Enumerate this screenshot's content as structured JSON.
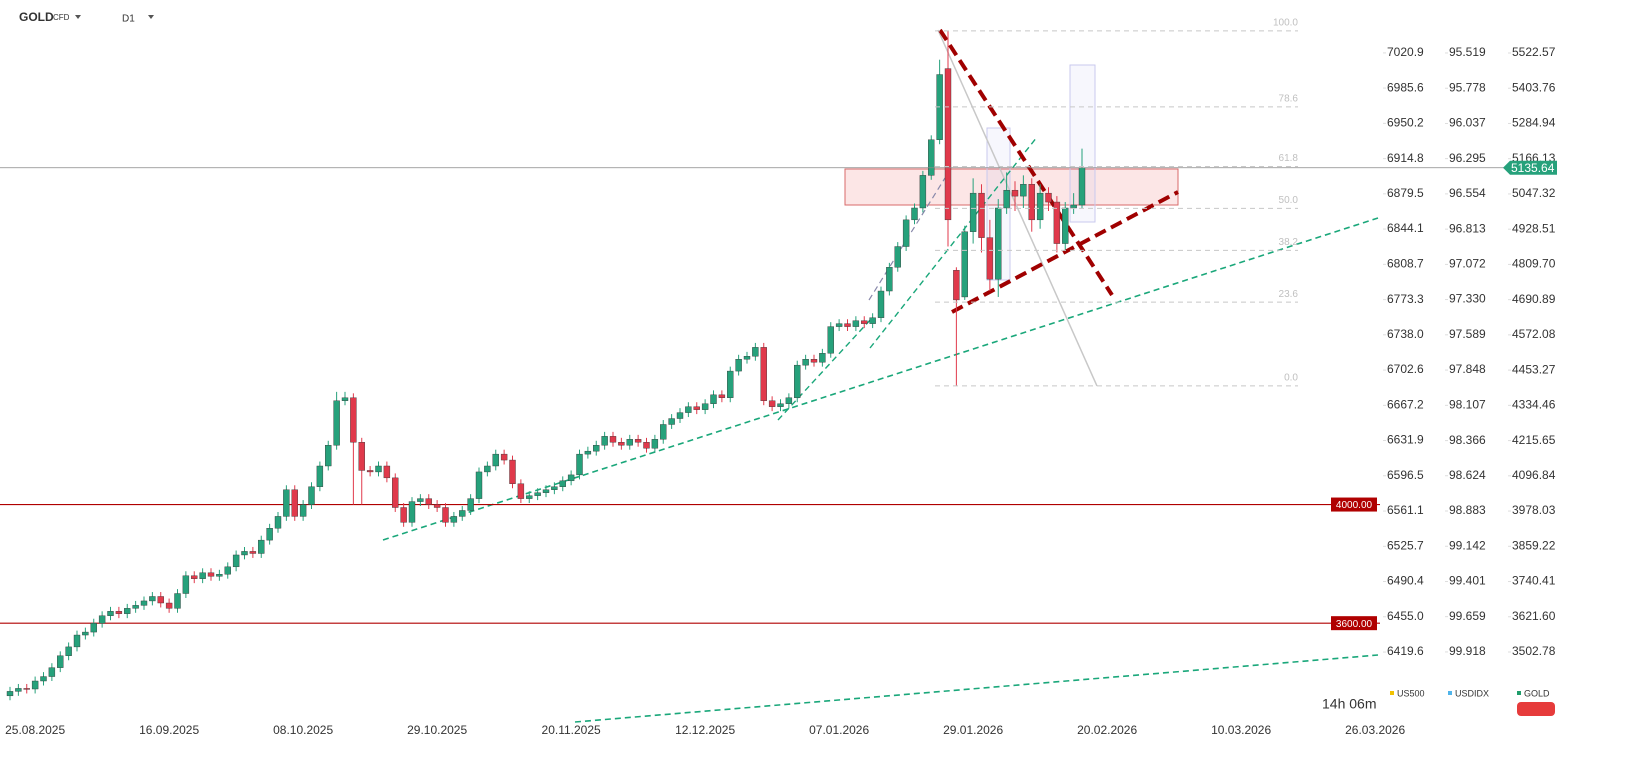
{
  "chart_data": {
    "type": "candlestick",
    "symbol": "GOLD",
    "symbol_type": "CFD",
    "timeframe": "D1",
    "countdown": "14h 06m",
    "last_price": 5135.64,
    "categories": [
      null,
      null,
      null,
      "25.08.2025",
      null,
      null,
      null,
      null,
      null,
      null,
      null,
      null,
      null,
      null,
      null,
      null,
      null,
      null,
      null,
      "16.09.2025",
      null,
      null,
      null,
      null,
      null,
      null,
      null,
      null,
      null,
      null,
      null,
      null,
      null,
      null,
      null,
      "08.10.2025",
      null,
      null,
      null,
      null,
      null,
      null,
      null,
      null,
      null,
      null,
      null,
      null,
      null,
      null,
      null,
      "29.10.2025",
      null,
      null,
      null,
      null,
      null,
      null,
      null,
      null,
      null,
      null,
      null,
      null,
      null,
      null,
      null,
      "20.11.2025",
      null,
      null,
      null,
      null,
      null,
      null,
      null,
      null,
      null,
      null,
      null,
      null,
      null,
      null,
      null,
      "12.12.2025",
      null,
      null,
      null,
      null,
      null,
      null,
      null,
      null,
      null,
      null,
      null,
      null,
      null,
      null,
      null,
      "07.01.2026",
      null,
      null,
      null,
      null,
      null,
      null,
      null,
      null,
      null,
      null,
      null,
      null,
      null,
      null,
      null,
      "29.01.2026",
      null,
      null,
      null,
      null,
      null,
      null,
      null,
      null,
      null,
      null,
      null,
      null,
      null,
      null,
      null,
      "20.02.2026",
      null,
      null,
      null,
      null,
      null,
      null,
      null,
      null,
      null,
      null,
      null,
      null,
      null,
      null,
      null,
      "10.03.2026",
      null,
      null,
      null,
      null,
      null,
      null,
      null,
      null,
      null,
      null,
      null,
      null,
      null,
      null,
      null,
      "26.03.2026"
    ],
    "series": [
      {
        "name": "US500",
        "color": "#f2c200"
      },
      {
        "name": "USDIDX",
        "color": "#4fb4ea"
      },
      {
        "name": "GOLD",
        "color": "#1f9d6b",
        "up_color": "#26a17b",
        "down_color": "#e0394b",
        "open": [
          3355,
          3370,
          3380,
          3378,
          3405,
          3420,
          3450,
          3490,
          3520,
          3560,
          3570,
          3600,
          3625,
          3640,
          3632,
          3650,
          3660,
          3675,
          3690,
          3668,
          3650,
          3700,
          3760,
          3750,
          3770,
          3758,
          3765,
          3790,
          3830,
          3842,
          3835,
          3880,
          3920,
          3960,
          4050,
          3960,
          4000,
          4060,
          4130,
          4200,
          4350,
          4360,
          4210,
          4115,
          4110,
          4130,
          4090,
          3990,
          3940,
          4010,
          4020,
          4000,
          3990,
          3940,
          3960,
          3980,
          4020,
          4110,
          4130,
          4170,
          4150,
          4070,
          4020,
          4030,
          4040,
          4050,
          4060,
          4080,
          4100,
          4170,
          4180,
          4200,
          4230,
          4210,
          4200,
          4220,
          4210,
          4190,
          4220,
          4270,
          4290,
          4310,
          4330,
          4320,
          4340,
          4370,
          4360,
          4450,
          4490,
          4500,
          4530,
          4350,
          4330,
          4340,
          4360,
          4470,
          4490,
          4480,
          4510,
          4600,
          4610,
          4600,
          4620,
          4610,
          4630,
          4720,
          4800,
          4870,
          4960,
          5000,
          5110,
          5230,
          5470,
          4790,
          4700,
          4920,
          5050,
          4900,
          4760,
          5000,
          5060,
          5040,
          5080,
          4960,
          5050,
          5020,
          4880,
          5000,
          5010,
          null,
          null,
          null,
          null,
          null,
          null,
          null,
          null,
          null,
          null,
          null,
          null,
          null,
          null,
          null,
          null,
          null,
          null,
          null,
          null,
          null,
          null,
          null,
          null,
          null,
          null,
          null,
          null,
          null,
          null,
          null,
          null,
          null,
          null,
          null
        ],
        "high": [
          3385,
          3395,
          3395,
          3420,
          3435,
          3465,
          3505,
          3535,
          3575,
          3585,
          3615,
          3640,
          3655,
          3655,
          3665,
          3675,
          3690,
          3705,
          3705,
          3683,
          3715,
          3775,
          3775,
          3785,
          3785,
          3780,
          3805,
          3845,
          3857,
          3857,
          3895,
          3935,
          3975,
          4065,
          4065,
          4015,
          4075,
          4145,
          4215,
          4380,
          4380,
          4375,
          4225,
          4130,
          4145,
          4145,
          4105,
          4005,
          4025,
          4035,
          4035,
          4015,
          4005,
          3975,
          3995,
          4035,
          4125,
          4145,
          4185,
          4185,
          4165,
          4085,
          4045,
          4055,
          4065,
          4075,
          4095,
          4115,
          4185,
          4195,
          4215,
          4245,
          4245,
          4225,
          4235,
          4235,
          4225,
          4235,
          4285,
          4305,
          4325,
          4345,
          4345,
          4355,
          4385,
          4385,
          4465,
          4505,
          4515,
          4545,
          4545,
          4365,
          4355,
          4375,
          4485,
          4505,
          4505,
          4525,
          4615,
          4625,
          4625,
          4635,
          4635,
          4645,
          4735,
          4815,
          4885,
          4975,
          5015,
          5125,
          5245,
          5500,
          5597,
          4800,
          4940,
          5100,
          5080,
          4960,
          5030,
          5120,
          5090,
          5110,
          5100,
          5080,
          5070,
          5040,
          5020,
          5050,
          5200,
          null,
          null,
          null,
          null,
          null,
          null,
          null,
          null,
          null,
          null,
          null,
          null,
          null,
          null,
          null,
          null,
          null,
          null,
          null,
          null,
          null,
          null,
          null,
          null,
          null,
          null,
          null,
          null,
          null,
          null,
          null,
          null,
          null,
          null,
          null
        ],
        "low": [
          3340,
          3355,
          3363,
          3363,
          3390,
          3405,
          3435,
          3475,
          3505,
          3545,
          3555,
          3585,
          3610,
          3617,
          3617,
          3635,
          3645,
          3660,
          3653,
          3635,
          3635,
          3685,
          3735,
          3735,
          3743,
          3743,
          3750,
          3775,
          3815,
          3820,
          3820,
          3865,
          3905,
          3945,
          3945,
          3945,
          3985,
          4045,
          4115,
          4185,
          4335,
          4000,
          4000,
          4095,
          4095,
          4075,
          3975,
          3925,
          3925,
          3995,
          3985,
          3975,
          3925,
          3925,
          3945,
          3965,
          4005,
          4095,
          4115,
          4135,
          4055,
          4005,
          4005,
          4015,
          4025,
          4035,
          4045,
          4065,
          4085,
          4155,
          4165,
          4185,
          4195,
          4185,
          4185,
          4195,
          4175,
          4175,
          4205,
          4255,
          4275,
          4295,
          4305,
          4305,
          4325,
          4345,
          4345,
          4435,
          4475,
          4485,
          4335,
          4315,
          4315,
          4325,
          4345,
          4455,
          4465,
          4465,
          4495,
          4585,
          4585,
          4585,
          4595,
          4595,
          4615,
          4705,
          4785,
          4855,
          4945,
          4985,
          5095,
          5215,
          4870,
          4400,
          4690,
          4880,
          4850,
          4720,
          4700,
          4980,
          4990,
          5000,
          4920,
          4930,
          4990,
          4850,
          4860,
          4980,
          5000,
          null,
          null,
          null,
          null,
          null,
          null,
          null,
          null,
          null,
          null,
          null,
          null,
          null,
          null,
          null,
          null,
          null,
          null,
          null,
          null,
          null,
          null,
          null,
          null,
          null,
          null,
          null,
          null,
          null,
          null,
          null,
          null,
          null,
          null,
          null
        ],
        "close": [
          3370,
          3380,
          3378,
          3405,
          3420,
          3450,
          3490,
          3520,
          3560,
          3570,
          3600,
          3625,
          3640,
          3632,
          3650,
          3660,
          3675,
          3690,
          3668,
          3650,
          3700,
          3760,
          3750,
          3770,
          3758,
          3765,
          3790,
          3830,
          3842,
          3835,
          3880,
          3920,
          3960,
          4050,
          3960,
          4000,
          4060,
          4130,
          4200,
          4350,
          4360,
          4210,
          4115,
          4110,
          4130,
          4090,
          3990,
          3940,
          4010,
          4020,
          4000,
          3990,
          3940,
          3960,
          3980,
          4020,
          4110,
          4130,
          4170,
          4150,
          4070,
          4020,
          4030,
          4040,
          4050,
          4060,
          4080,
          4100,
          4170,
          4180,
          4200,
          4230,
          4210,
          4200,
          4220,
          4210,
          4190,
          4220,
          4270,
          4290,
          4310,
          4330,
          4320,
          4340,
          4370,
          4360,
          4450,
          4490,
          4500,
          4530,
          4350,
          4330,
          4340,
          4360,
          4470,
          4490,
          4480,
          4510,
          4600,
          4610,
          4600,
          4620,
          4610,
          4630,
          4720,
          4800,
          4870,
          4960,
          5000,
          5110,
          5230,
          5450,
          4960,
          4690,
          4920,
          5050,
          4900,
          4760,
          5000,
          5060,
          5040,
          5080,
          4960,
          5050,
          5020,
          4880,
          5000,
          5010,
          5135.64,
          null,
          null,
          null,
          null,
          null,
          null,
          null,
          null,
          null,
          null,
          null,
          null,
          null,
          null,
          null,
          null,
          null,
          null,
          null,
          null,
          null,
          null,
          null,
          null,
          null,
          null,
          null,
          null,
          null,
          null,
          null,
          null,
          null,
          null,
          null
        ]
      }
    ],
    "ylim": [
      3273.5,
      5701.3
    ],
    "yticks": [
      5522.57,
      5403.76,
      5284.94,
      5166.13,
      5047.32,
      4928.51,
      {
        "value": 4809.7,
        "label": "4809.70"
      },
      4690.89,
      4572.08,
      4453.27,
      4334.46,
      4215.65,
      4096.84,
      3978.03,
      3859.22,
      3740.41,
      {
        "value": 3621.6,
        "label": "3621.60"
      },
      3502.78
    ],
    "y2lim": [
      6351.4,
      7074.0
    ],
    "y2ticks": [
      7020.9,
      6985.6,
      6950.2,
      6914.8,
      6879.5,
      6844.1,
      6808.7,
      6773.3,
      {
        "value": 6738,
        "label": "6738.0"
      },
      6702.6,
      6667.2,
      6631.9,
      6596.5,
      6561.1,
      6525.7,
      6490.4,
      {
        "value": 6455,
        "label": "6455.0"
      },
      6419.6
    ],
    "y3lim": [
      100.418,
      95.13
    ],
    "y3ticks": [
      95.519,
      95.778,
      96.037,
      96.295,
      96.554,
      96.813,
      97.072,
      {
        "value": 97.33,
        "label": "97.330"
      },
      97.589,
      97.848,
      98.107,
      98.366,
      98.624,
      98.883,
      99.142,
      99.401,
      99.659,
      99.918
    ],
    "hlines": [
      {
        "value": 4000,
        "label": "4000.00",
        "color": "#b00000"
      },
      {
        "value": 3600,
        "label": "3600.00",
        "color": "#b00000"
      }
    ],
    "fib_levels": [
      {
        "value": 100,
        "label": "100.0"
      },
      78.6,
      61.8,
      {
        "value": 50,
        "label": "50.0"
      },
      38.2,
      23.6,
      {
        "value": 0,
        "label": "0.0"
      }
    ]
  }
}
